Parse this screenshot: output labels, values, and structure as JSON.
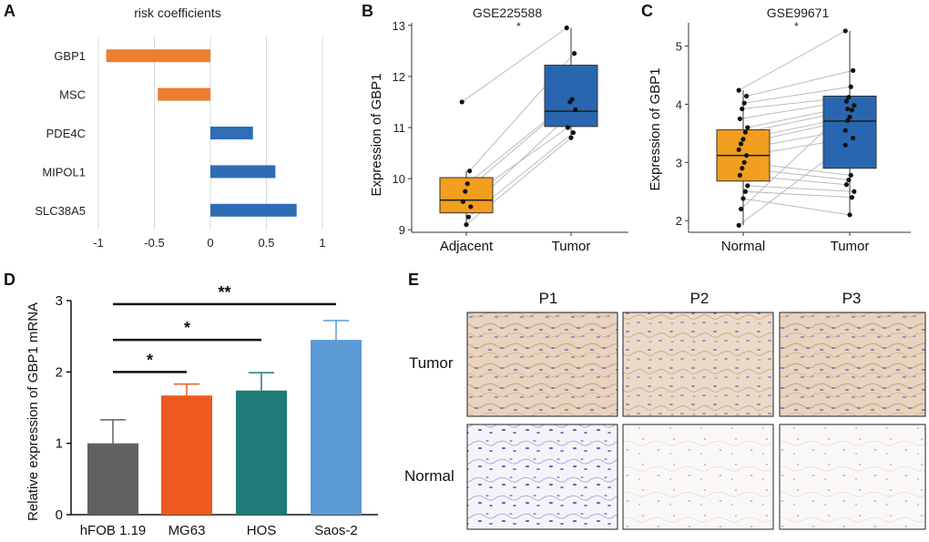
{
  "colors": {
    "orange": "#ED7D31",
    "blue": "#2E6DB4",
    "box_orange": "#F29E1E",
    "box_blue": "#2867B0",
    "gray_bar": "#616161",
    "mg63": "#EE5A1E",
    "hos": "#1E7B78",
    "saos": "#5B9BD5",
    "grid": "#D9D9D9",
    "line": "#BBBBBB"
  },
  "chart_data": [
    {
      "id": "A",
      "panel_letter": "A",
      "type": "bar",
      "orientation": "horizontal",
      "title": "risk coefficients",
      "categories": [
        "GBP1",
        "MSC",
        "PDE4C",
        "MIPOL1",
        "SLC38A5"
      ],
      "values": [
        -0.93,
        -0.47,
        0.38,
        0.58,
        0.77
      ],
      "xlim": [
        -1,
        1
      ],
      "xticks": [
        -1,
        -0.5,
        0,
        0.5,
        1
      ],
      "xtick_labels": [
        "-1",
        "-0.5",
        "0",
        "0.5",
        "1"
      ],
      "grid": true
    },
    {
      "id": "B",
      "panel_letter": "B",
      "type": "box",
      "title": "GSE225588",
      "ylabel": "Expression of GBP1",
      "categories": [
        "Adjacent",
        "Tumor"
      ],
      "ylim": [
        8.95,
        13.05
      ],
      "yticks": [
        9,
        10,
        11,
        12,
        13
      ],
      "significance": "*",
      "boxes": [
        {
          "name": "Adjacent",
          "q1": 9.33,
          "median": 9.58,
          "q3": 10.02,
          "whisker_low": 9.1,
          "whisker_high": 10.15
        },
        {
          "name": "Tumor",
          "q1": 11.02,
          "median": 11.32,
          "q3": 12.22,
          "whisker_low": 10.8,
          "whisker_high": 12.95
        }
      ],
      "points": {
        "Adjacent": [
          11.5,
          10.15,
          9.9,
          9.75,
          9.55,
          9.45,
          9.25,
          9.1
        ],
        "Tumor": [
          12.95,
          12.45,
          11.55,
          11.5,
          11.0,
          11.35,
          10.9,
          10.8
        ]
      }
    },
    {
      "id": "C",
      "panel_letter": "C",
      "type": "box",
      "title": "GSE99671",
      "ylabel": "Expression of GBP1",
      "categories": [
        "Normal",
        "Tumor"
      ],
      "ylim": [
        1.8,
        5.4
      ],
      "yticks": [
        2,
        3,
        4,
        5
      ],
      "significance": "*",
      "boxes": [
        {
          "name": "Normal",
          "q1": 2.68,
          "median": 3.12,
          "q3": 3.56,
          "whisker_low": 1.92,
          "whisker_high": 4.24
        },
        {
          "name": "Tumor",
          "q1": 2.9,
          "median": 3.71,
          "q3": 4.14,
          "whisker_low": 2.1,
          "whisker_high": 5.26
        }
      ],
      "points": {
        "Normal": [
          4.24,
          4.14,
          4.02,
          3.92,
          3.75,
          3.6,
          3.52,
          3.4,
          3.32,
          3.22,
          3.12,
          3.0,
          2.9,
          2.78,
          2.6,
          2.5,
          2.38,
          2.2,
          1.92
        ],
        "Tumor": [
          5.26,
          4.58,
          4.3,
          4.12,
          4.05,
          3.98,
          3.9,
          3.78,
          3.72,
          3.55,
          3.42,
          2.78,
          2.7,
          2.62,
          2.5,
          2.4,
          2.1,
          3.92,
          3.3
        ]
      }
    },
    {
      "id": "D",
      "panel_letter": "D",
      "type": "bar",
      "ylabel": "Relative expression of GBP1 mRNA",
      "categories": [
        "hFOB 1.19",
        "MG63",
        "HOS",
        "Saos-2"
      ],
      "values": [
        1.0,
        1.67,
        1.74,
        2.45
      ],
      "errors": [
        0.33,
        0.16,
        0.25,
        0.27
      ],
      "ylim": [
        0,
        3
      ],
      "yticks": [
        0,
        1,
        2,
        3
      ],
      "significance": [
        {
          "from": "hFOB 1.19",
          "to": "MG63",
          "label": "*",
          "y": 2.0
        },
        {
          "from": "hFOB 1.19",
          "to": "HOS",
          "label": "*",
          "y": 2.45
        },
        {
          "from": "hFOB 1.19",
          "to": "Saos-2",
          "label": "**",
          "y": 2.95
        }
      ]
    }
  ],
  "ihc": {
    "panel_letter": "E",
    "columns": [
      "P1",
      "P2",
      "P3"
    ],
    "rows": [
      "Tumor",
      "Normal"
    ]
  }
}
